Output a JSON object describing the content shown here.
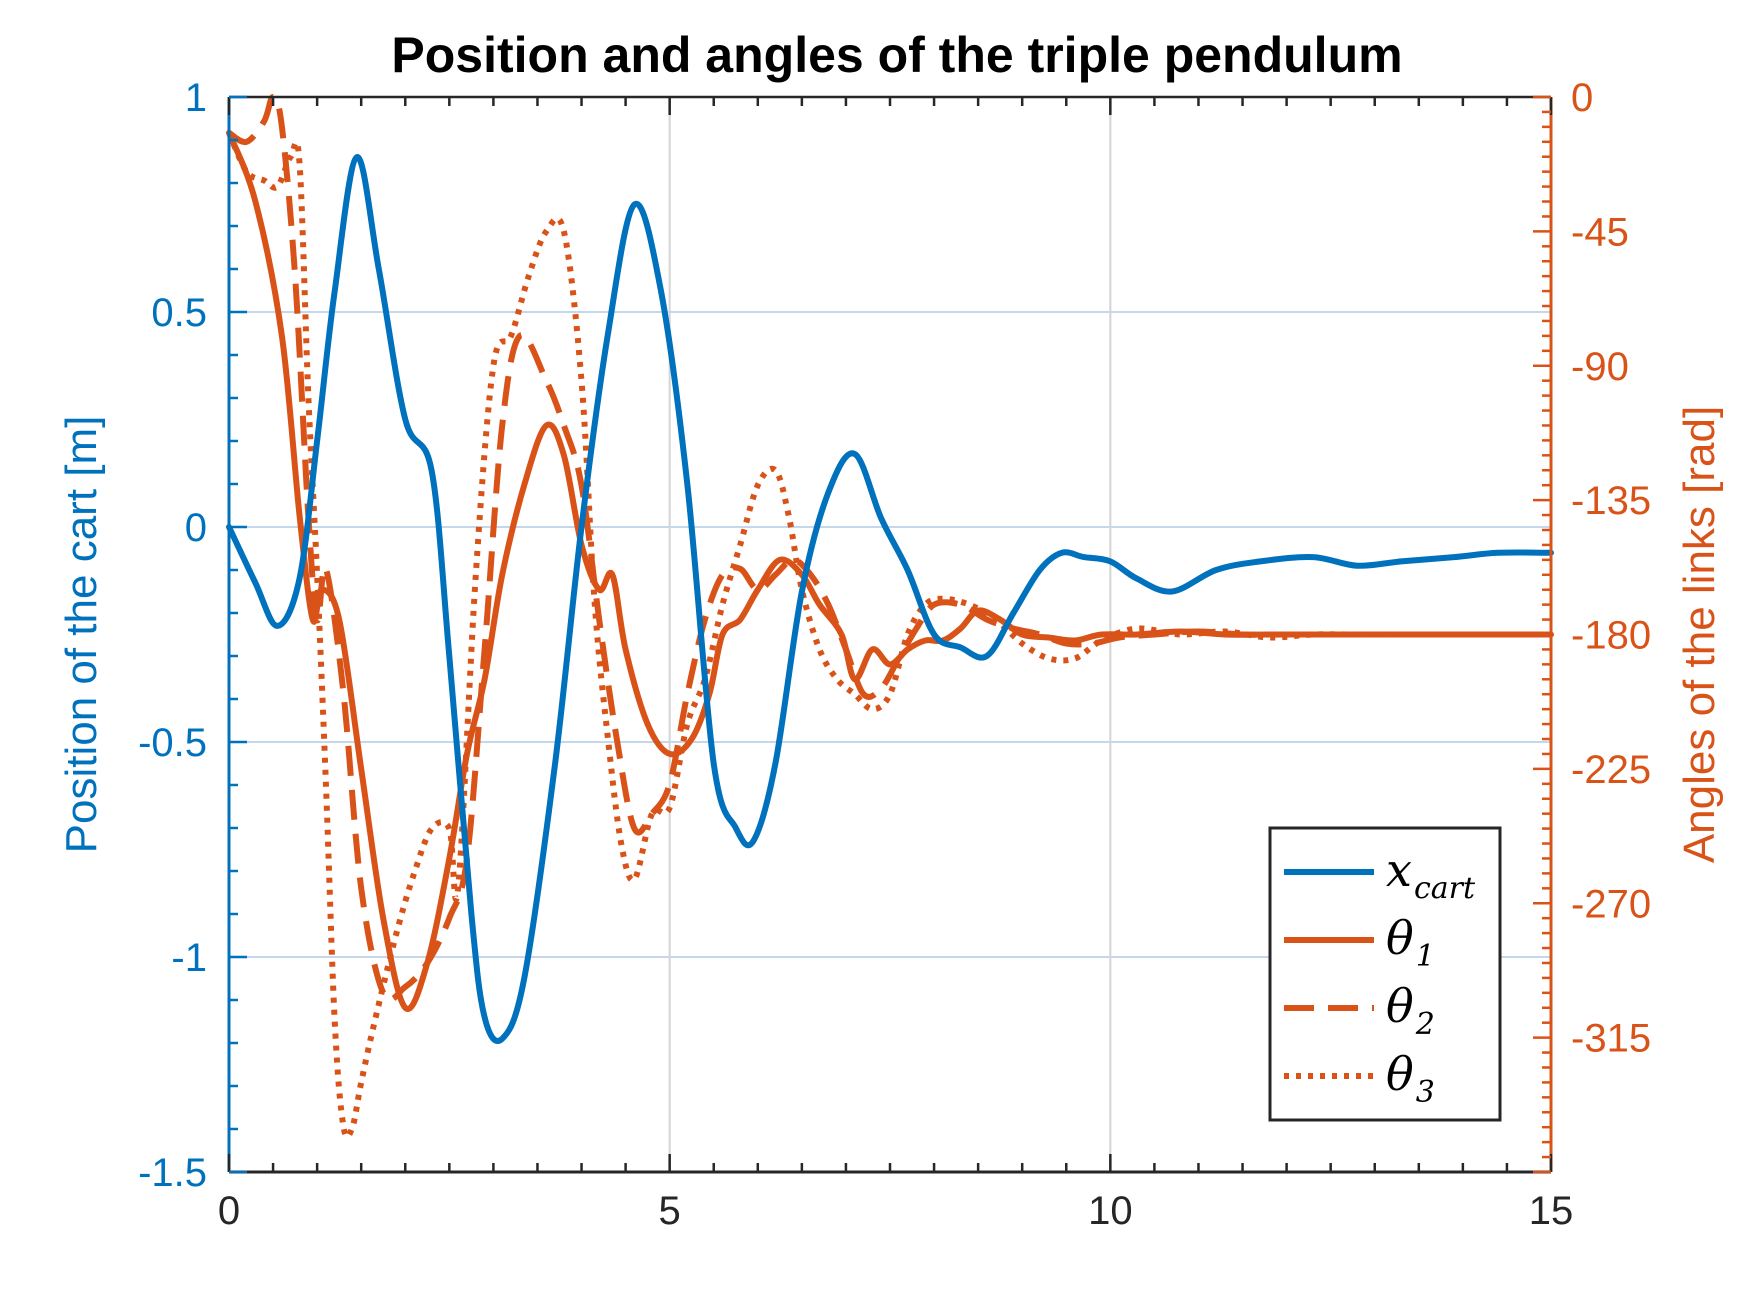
{
  "chart_data": {
    "type": "line",
    "title": "Position and angles of the triple pendulum",
    "xlabel": "",
    "xlim": [
      0,
      15
    ],
    "x_ticks": [
      "0",
      "5",
      "10",
      "15"
    ],
    "left_axis": {
      "label": "Position of the cart [m]",
      "ylim": [
        -1.5,
        1
      ],
      "ticks": [
        "1",
        "0.5",
        "0",
        "-0.5",
        "-1",
        "-1.5"
      ],
      "color": "#0072BD"
    },
    "right_axis": {
      "label": "Angles of the links [rad]",
      "ylim": [
        -360,
        0
      ],
      "ticks": [
        "0",
        "-45",
        "-90",
        "-135",
        "-180",
        "-225",
        "-270",
        "-315"
      ],
      "color": "#D95319"
    },
    "grid": true,
    "legend_position": "bottom-right",
    "series": [
      {
        "name": "x_cart",
        "legend_main": "x",
        "legend_sub": "cart",
        "axis": "left",
        "style": "solid",
        "x": [
          0,
          0.3,
          0.55,
          0.8,
          1.0,
          1.2,
          1.45,
          1.7,
          2.0,
          2.3,
          2.5,
          2.75,
          2.9,
          3.1,
          3.35,
          3.7,
          4.0,
          4.3,
          4.6,
          4.9,
          5.2,
          5.5,
          5.75,
          5.95,
          6.2,
          6.5,
          6.8,
          7.1,
          7.4,
          7.7,
          8.0,
          8.3,
          8.6,
          8.9,
          9.2,
          9.45,
          9.7,
          10.0,
          10.3,
          10.7,
          11.2,
          11.7,
          12.3,
          12.8,
          13.3,
          13.9,
          14.4,
          15.0
        ],
        "y": [
          0,
          -0.13,
          -0.23,
          -0.12,
          0.2,
          0.55,
          0.86,
          0.6,
          0.25,
          0.13,
          -0.3,
          -0.9,
          -1.14,
          -1.19,
          -1.05,
          -0.55,
          0.0,
          0.45,
          0.75,
          0.55,
          0.1,
          -0.55,
          -0.7,
          -0.73,
          -0.55,
          -0.15,
          0.08,
          0.17,
          0.02,
          -0.1,
          -0.25,
          -0.28,
          -0.3,
          -0.2,
          -0.1,
          -0.06,
          -0.07,
          -0.08,
          -0.12,
          -0.15,
          -0.1,
          -0.08,
          -0.07,
          -0.09,
          -0.08,
          -0.07,
          -0.06,
          -0.06
        ]
      },
      {
        "name": "theta_1",
        "legend_main": "θ",
        "legend_sub": "1",
        "axis": "right",
        "style": "solid",
        "x": [
          0,
          0.3,
          0.6,
          0.8,
          0.95,
          1.05,
          1.25,
          1.5,
          1.75,
          2.0,
          2.25,
          2.5,
          2.7,
          2.9,
          3.1,
          3.35,
          3.6,
          3.8,
          4.0,
          4.2,
          4.35,
          4.5,
          4.75,
          5.0,
          5.25,
          5.45,
          5.6,
          5.8,
          6.0,
          6.25,
          6.5,
          6.7,
          6.95,
          7.1,
          7.3,
          7.5,
          7.7,
          7.9,
          8.1,
          8.3,
          8.5,
          8.75,
          9.0,
          9.3,
          9.6,
          9.9,
          10.3,
          10.8,
          11.3,
          11.8,
          12.3,
          12.8,
          13.3,
          13.8,
          14.3,
          15.0
        ],
        "y": [
          -12,
          -35,
          -80,
          -140,
          -175,
          -165,
          -175,
          -225,
          -275,
          -305,
          -290,
          -255,
          -220,
          -195,
          -160,
          -130,
          -110,
          -120,
          -150,
          -165,
          -160,
          -185,
          -210,
          -220,
          -215,
          -200,
          -180,
          -175,
          -165,
          -155,
          -160,
          -170,
          -180,
          -195,
          -185,
          -190,
          -185,
          -182,
          -182,
          -178,
          -172,
          -175,
          -180,
          -181,
          -182,
          -180,
          -180,
          -179,
          -180,
          -180,
          -180,
          -180,
          -180,
          -180,
          -180,
          -180
        ]
      },
      {
        "name": "theta_2",
        "legend_main": "θ",
        "legend_sub": "2",
        "axis": "right",
        "style": "dashed",
        "x": [
          0,
          0.2,
          0.4,
          0.5,
          0.6,
          0.75,
          0.9,
          1.0,
          1.1,
          1.3,
          1.5,
          1.75,
          2.0,
          2.25,
          2.5,
          2.7,
          2.9,
          3.1,
          3.3,
          3.6,
          3.8,
          4.0,
          4.2,
          4.4,
          4.6,
          4.8,
          5.0,
          5.2,
          5.4,
          5.6,
          5.8,
          6.0,
          6.2,
          6.4,
          6.6,
          6.8,
          7.0,
          7.2,
          7.4,
          7.6,
          7.8,
          8.0,
          8.3,
          8.6,
          8.9,
          9.2,
          9.5,
          9.8,
          10.1,
          10.5,
          11.0,
          11.5,
          12.0,
          12.5,
          13.0,
          13.5,
          14.0,
          14.5,
          15.0
        ],
        "y": [
          -12,
          -15,
          -8,
          0,
          -10,
          -60,
          -140,
          -175,
          -158,
          -200,
          -265,
          -300,
          -298,
          -290,
          -275,
          -255,
          -185,
          -110,
          -80,
          -95,
          -110,
          -130,
          -175,
          -215,
          -245,
          -240,
          -230,
          -200,
          -175,
          -160,
          -158,
          -165,
          -160,
          -155,
          -160,
          -170,
          -185,
          -200,
          -198,
          -188,
          -178,
          -170,
          -170,
          -175,
          -178,
          -180,
          -183,
          -183,
          -181,
          -180,
          -179,
          -180,
          -180,
          -180,
          -180,
          -180,
          -180,
          -180,
          -180
        ]
      },
      {
        "name": "theta_3",
        "legend_main": "θ",
        "legend_sub": "3",
        "axis": "right",
        "style": "dotted",
        "x": [
          0,
          0.2,
          0.4,
          0.55,
          0.7,
          0.8,
          0.9,
          1.0,
          1.1,
          1.2,
          1.3,
          1.4,
          1.5,
          1.65,
          1.9,
          2.1,
          2.3,
          2.5,
          2.6,
          2.8,
          3.0,
          3.2,
          3.4,
          3.6,
          3.8,
          4.0,
          4.15,
          4.3,
          4.45,
          4.6,
          4.8,
          5.0,
          5.2,
          5.4,
          5.6,
          5.8,
          6.0,
          6.2,
          6.35,
          6.5,
          6.7,
          6.9,
          7.1,
          7.3,
          7.5,
          7.7,
          7.9,
          8.1,
          8.4,
          8.7,
          9.0,
          9.3,
          9.6,
          9.9,
          10.3,
          10.8,
          11.3,
          11.8,
          12.3,
          12.8,
          13.3,
          13.8,
          14.3,
          15.0
        ],
        "y": [
          -12,
          -25,
          -28,
          -30,
          -20,
          -22,
          -100,
          -160,
          -230,
          -310,
          -345,
          -345,
          -330,
          -310,
          -280,
          -260,
          -245,
          -245,
          -265,
          -160,
          -90,
          -80,
          -60,
          -45,
          -45,
          -95,
          -170,
          -215,
          -250,
          -262,
          -240,
          -238,
          -210,
          -195,
          -170,
          -150,
          -130,
          -125,
          -140,
          -165,
          -185,
          -195,
          -200,
          -205,
          -200,
          -180,
          -170,
          -168,
          -170,
          -175,
          -183,
          -188,
          -188,
          -182,
          -178,
          -180,
          -179,
          -181,
          -180,
          -180,
          -180,
          -180,
          -180,
          -180
        ]
      }
    ]
  }
}
